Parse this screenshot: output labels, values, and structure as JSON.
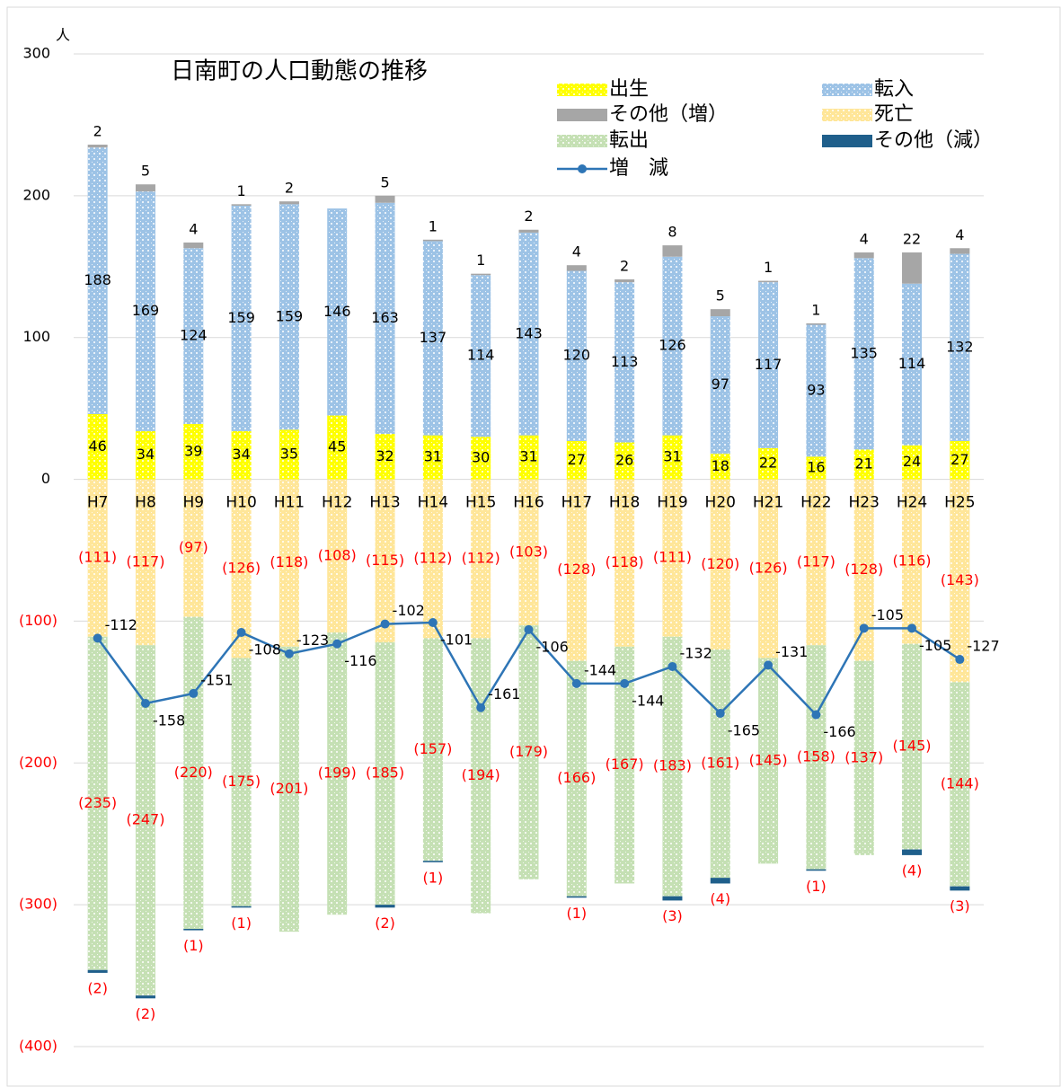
{
  "chart_data": {
    "type": "bar",
    "title": "日南町の人口動態の推移",
    "y_unit": "人",
    "categories": [
      "H7",
      "H8",
      "H9",
      "H10",
      "H11",
      "H12",
      "H13",
      "H14",
      "H15",
      "H16",
      "H17",
      "H18",
      "H19",
      "H20",
      "H21",
      "H22",
      "H23",
      "H24",
      "H25"
    ],
    "ylim": [
      -400,
      300
    ],
    "yticks": [
      300,
      200,
      100,
      0,
      {
        "value": -100,
        "label": "(100)"
      },
      {
        "value": -200,
        "label": "(200)"
      },
      {
        "value": -300,
        "label": "(300)"
      },
      {
        "value": -400,
        "label": "(400)"
      }
    ],
    "grid": true,
    "series": [
      {
        "name": "出生",
        "color": "#ffff00",
        "pattern": "dots",
        "values": [
          46,
          34,
          39,
          34,
          35,
          45,
          32,
          31,
          30,
          31,
          27,
          26,
          31,
          18,
          22,
          16,
          21,
          24,
          27
        ]
      },
      {
        "name": "転入",
        "color": "#9dc3e6",
        "pattern": "dots",
        "values": [
          188,
          169,
          124,
          159,
          159,
          146,
          163,
          137,
          114,
          143,
          120,
          113,
          126,
          97,
          117,
          93,
          135,
          114,
          132
        ]
      },
      {
        "name": "その他（増）",
        "color": "#a6a6a6",
        "values": [
          2,
          5,
          4,
          1,
          2,
          null,
          5,
          1,
          1,
          2,
          4,
          2,
          8,
          5,
          1,
          1,
          4,
          22,
          4
        ]
      },
      {
        "name": "死亡",
        "color": "#ffe699",
        "pattern": "dots",
        "values": [
          -111,
          -117,
          -97,
          -126,
          -118,
          -108,
          -115,
          -112,
          -112,
          -103,
          -128,
          -118,
          -111,
          -120,
          -126,
          -117,
          -128,
          -116,
          -143
        ],
        "value_labels": [
          "(111)",
          "(117)",
          "(97)",
          "(126)",
          "(118)",
          "(108)",
          "(115)",
          "(112)",
          "(112)",
          "(103)",
          "(128)",
          "(118)",
          "(111)",
          "(120)",
          "(126)",
          "(117)",
          "(128)",
          "(116)",
          "(143)"
        ]
      },
      {
        "name": "転出",
        "color": "#c5e0b4",
        "pattern": "dots",
        "values": [
          -235,
          -247,
          -220,
          -175,
          -201,
          -199,
          -185,
          -157,
          -194,
          -179,
          -166,
          -167,
          -183,
          -161,
          -145,
          -158,
          -137,
          -145,
          -144
        ],
        "value_labels": [
          "(235)",
          "(247)",
          "(220)",
          "(175)",
          "(201)",
          "(199)",
          "(185)",
          "(157)",
          "(194)",
          "(179)",
          "(166)",
          "(167)",
          "(183)",
          "(161)",
          "(145)",
          "(158)",
          "(137)",
          "(145)",
          "(144)"
        ]
      },
      {
        "name": "その他（減）",
        "color": "#1f5f8b",
        "values": [
          -2,
          -2,
          -1,
          -1,
          null,
          null,
          -2,
          -1,
          null,
          null,
          -1,
          null,
          -3,
          -4,
          null,
          -1,
          null,
          -4,
          -3
        ],
        "value_labels": [
          "(2)",
          "(2)",
          "(1)",
          "(1)",
          null,
          null,
          "(2)",
          "(1)",
          null,
          null,
          "(1)",
          null,
          "(3)",
          "(4)",
          null,
          "(1)",
          null,
          "(4)",
          "(3)"
        ]
      },
      {
        "name": "増　減",
        "color": "#2e75b6",
        "type": "line",
        "values": [
          -112,
          -158,
          -151,
          -108,
          -123,
          -116,
          -102,
          -101,
          -161,
          -106,
          -144,
          -144,
          -132,
          -165,
          -131,
          -166,
          -105,
          -105,
          -127
        ]
      }
    ]
  }
}
